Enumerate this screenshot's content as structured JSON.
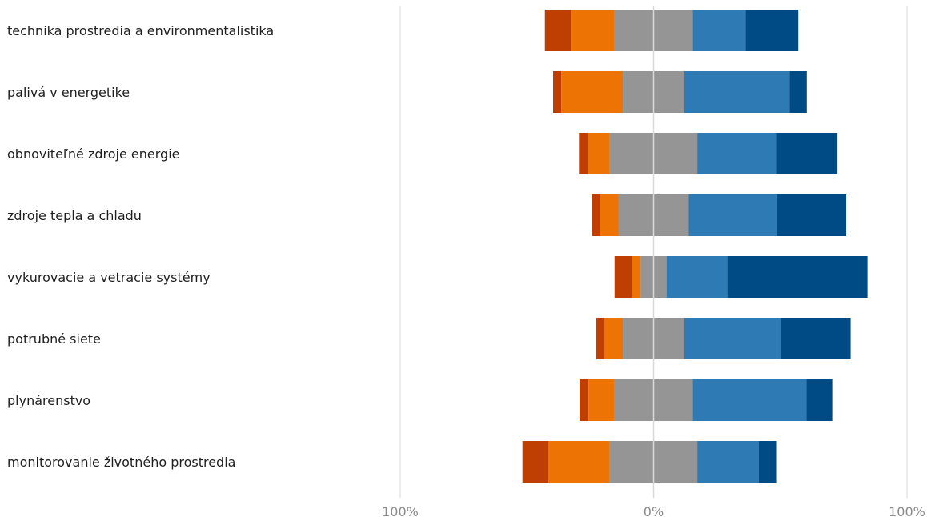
{
  "chart_data": {
    "type": "bar",
    "orientation": "horizontal",
    "stacking": "diverging",
    "title": "",
    "xlabel": "",
    "ylabel": "",
    "xlim": [
      -100,
      100
    ],
    "x_ticks": [
      {
        "value": -100,
        "label": "100%"
      },
      {
        "value": 0,
        "label": "0%"
      },
      {
        "value": 100,
        "label": "100%"
      }
    ],
    "grid": "vertical lines at 100%, 0% and 100%",
    "legend": "none",
    "categories": [
      "technika prostredia a environmentalistika",
      "palivá v energetike",
      "obnoviteľné zdroje energie",
      "zdroje tepla a chladu",
      "vykurovacie a vetracie systémy",
      "potrubné siete",
      "plynárenstvo",
      "monitorovanie životného prostredia"
    ],
    "series": [
      {
        "color": "#bf3f02",
        "values": [
          10.2,
          3.2,
          3.5,
          3.0,
          6.8,
          3.2,
          3.5,
          10.2
        ],
        "side": "negative"
      },
      {
        "color": "#ed7305",
        "values": [
          17.2,
          24.3,
          8.7,
          7.3,
          3.5,
          7.3,
          10.2,
          24.3
        ],
        "side": "negative"
      },
      {
        "color": "#959595",
        "values": [
          31.0,
          24.3,
          34.5,
          27.8,
          10.2,
          24.3,
          31.0,
          34.5
        ],
        "side": "neutral"
      },
      {
        "color": "#2e7ab5",
        "values": [
          20.8,
          41.5,
          31.0,
          34.5,
          24.0,
          38.0,
          44.8,
          24.3
        ],
        "side": "positive"
      },
      {
        "color": "#004a85",
        "values": [
          20.8,
          6.8,
          24.3,
          27.6,
          55.3,
          27.6,
          10.2,
          6.8
        ],
        "side": "positive"
      }
    ]
  }
}
